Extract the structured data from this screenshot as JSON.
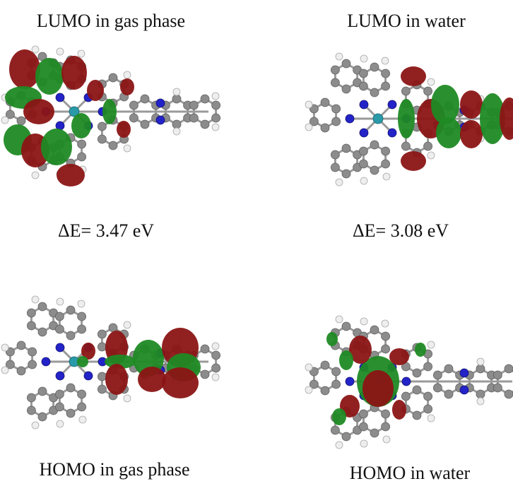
{
  "panels": [
    {
      "label": "LUMO in gas phase"
    },
    {
      "label": "LUMO in water"
    },
    {
      "label": "HOMO in gas phase"
    },
    {
      "label": "HOMO in water"
    }
  ],
  "energy_gaps": [
    "ΔE= 3.47 eV",
    "ΔE= 3.08 eV"
  ]
}
